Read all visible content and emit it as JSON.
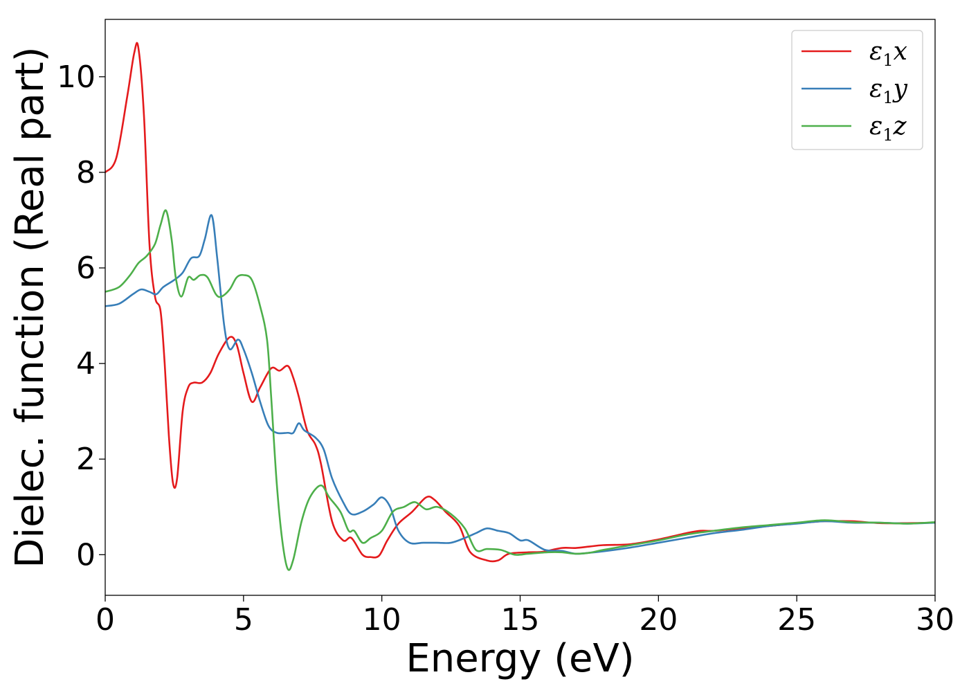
{
  "chart_data": {
    "type": "line",
    "xlabel": "Energy (eV)",
    "ylabel": "Dielec. function (Real part)",
    "xlim": [
      0,
      30
    ],
    "ylim": [
      -0.85,
      11.2
    ],
    "xticks": [
      0,
      5,
      10,
      15,
      20,
      25,
      30
    ],
    "yticks": [
      0,
      2,
      4,
      6,
      8,
      10
    ],
    "grid": false,
    "legend_position": "top-right",
    "series": [
      {
        "name": "ε1x",
        "legend": {
          "main": "ε",
          "sub": "1",
          "suffix": "x"
        },
        "color": "#e41a1c",
        "x": [
          0,
          0.4,
          0.8,
          1.05,
          1.2,
          1.4,
          1.6,
          1.8,
          2.0,
          2.15,
          2.3,
          2.45,
          2.6,
          2.8,
          3.0,
          3.2,
          3.5,
          3.8,
          4.1,
          4.5,
          4.75,
          5.0,
          5.3,
          5.6,
          6.0,
          6.3,
          6.6,
          6.8,
          7.0,
          7.3,
          7.6,
          7.8,
          8.2,
          8.6,
          8.9,
          9.3,
          9.6,
          9.9,
          10.2,
          10.6,
          11.1,
          11.6,
          11.9,
          12.3,
          12.8,
          13.2,
          13.8,
          14.2,
          14.6,
          15.3,
          15.8,
          16.5,
          17.0,
          17.5,
          18.0,
          19.0,
          20.0,
          21.0,
          21.5,
          22.0,
          23.0,
          24.0,
          25.0,
          25.5,
          26.0,
          27.0,
          28.0,
          29.0,
          30.0
        ],
        "y": [
          8.0,
          8.3,
          9.6,
          10.5,
          10.6,
          9.2,
          6.5,
          5.4,
          5.1,
          4.0,
          2.5,
          1.5,
          1.6,
          3.0,
          3.5,
          3.6,
          3.6,
          3.8,
          4.2,
          4.55,
          4.4,
          3.8,
          3.2,
          3.5,
          3.9,
          3.85,
          3.95,
          3.7,
          3.3,
          2.6,
          2.3,
          1.9,
          0.7,
          0.3,
          0.35,
          0.0,
          -0.05,
          -0.02,
          0.3,
          0.65,
          0.9,
          1.2,
          1.15,
          0.9,
          0.6,
          0.05,
          -0.12,
          -0.12,
          0.02,
          0.05,
          0.06,
          0.14,
          0.14,
          0.17,
          0.2,
          0.22,
          0.32,
          0.45,
          0.5,
          0.5,
          0.55,
          0.6,
          0.66,
          0.68,
          0.7,
          0.7,
          0.66,
          0.66,
          0.67
        ]
      },
      {
        "name": "ε1y",
        "legend": {
          "main": "ε",
          "sub": "1",
          "suffix": "y"
        },
        "color": "#377eb8",
        "x": [
          0,
          0.5,
          1.0,
          1.3,
          1.6,
          1.85,
          2.1,
          2.5,
          2.8,
          3.1,
          3.4,
          3.6,
          3.85,
          4.05,
          4.3,
          4.5,
          4.8,
          5.0,
          5.3,
          5.6,
          5.9,
          6.2,
          6.6,
          6.8,
          7.0,
          7.2,
          7.6,
          7.9,
          8.2,
          8.6,
          8.9,
          9.3,
          9.7,
          10.0,
          10.3,
          10.6,
          11.0,
          11.5,
          12.0,
          12.5,
          13.0,
          13.4,
          13.8,
          14.2,
          14.6,
          15.0,
          15.3,
          15.9,
          16.5,
          17.0,
          17.5,
          18.0,
          19.0,
          20.0,
          21.0,
          22.0,
          23.0,
          24.0,
          25.0,
          26.0,
          27.0,
          28.0,
          29.0,
          30.0
        ],
        "y": [
          5.2,
          5.25,
          5.45,
          5.55,
          5.5,
          5.45,
          5.6,
          5.75,
          5.9,
          6.2,
          6.25,
          6.6,
          7.1,
          6.2,
          4.8,
          4.3,
          4.5,
          4.3,
          3.8,
          3.2,
          2.7,
          2.55,
          2.55,
          2.55,
          2.75,
          2.6,
          2.45,
          2.2,
          1.6,
          1.1,
          0.85,
          0.9,
          1.05,
          1.2,
          1.0,
          0.5,
          0.25,
          0.25,
          0.25,
          0.25,
          0.35,
          0.45,
          0.55,
          0.5,
          0.45,
          0.3,
          0.3,
          0.1,
          0.08,
          0.02,
          0.04,
          0.07,
          0.15,
          0.25,
          0.35,
          0.45,
          0.52,
          0.6,
          0.65,
          0.7,
          0.67,
          0.67,
          0.65,
          0.67
        ]
      },
      {
        "name": "ε1z",
        "legend": {
          "main": "ε",
          "sub": "1",
          "suffix": "z"
        },
        "color": "#4daf4a",
        "x": [
          0,
          0.5,
          0.9,
          1.2,
          1.5,
          1.8,
          2.0,
          2.2,
          2.4,
          2.55,
          2.75,
          3.0,
          3.2,
          3.45,
          3.7,
          4.0,
          4.2,
          4.5,
          4.75,
          5.0,
          5.3,
          5.6,
          5.85,
          6.0,
          6.2,
          6.4,
          6.6,
          6.8,
          7.1,
          7.4,
          7.8,
          8.1,
          8.5,
          8.8,
          9.0,
          9.3,
          9.6,
          10.0,
          10.4,
          10.8,
          11.2,
          11.6,
          12.0,
          12.5,
          13.0,
          13.4,
          13.8,
          14.3,
          14.8,
          15.3,
          16.0,
          16.5,
          17.0,
          17.5,
          18.0,
          19.0,
          20.0,
          21.0,
          22.0,
          23.0,
          24.0,
          25.0,
          26.0,
          27.0,
          28.0,
          29.0,
          30.0
        ],
        "y": [
          5.5,
          5.6,
          5.85,
          6.1,
          6.25,
          6.5,
          6.9,
          7.2,
          6.6,
          5.8,
          5.4,
          5.8,
          5.75,
          5.85,
          5.8,
          5.45,
          5.4,
          5.55,
          5.8,
          5.85,
          5.75,
          5.2,
          4.5,
          3.3,
          1.5,
          0.3,
          -0.3,
          -0.1,
          0.7,
          1.2,
          1.45,
          1.2,
          0.9,
          0.5,
          0.5,
          0.25,
          0.35,
          0.5,
          0.9,
          1.0,
          1.1,
          0.95,
          1.0,
          0.85,
          0.55,
          0.1,
          0.12,
          0.1,
          0.0,
          0.02,
          0.05,
          0.05,
          0.02,
          0.04,
          0.1,
          0.2,
          0.3,
          0.42,
          0.5,
          0.57,
          0.62,
          0.67,
          0.72,
          0.68,
          0.67,
          0.65,
          0.68
        ]
      }
    ]
  }
}
